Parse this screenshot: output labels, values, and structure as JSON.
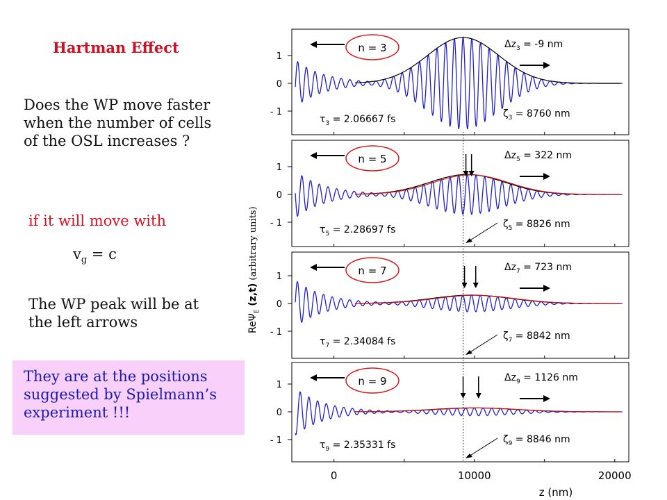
{
  "left_panel": {
    "title": "Hartman Effect",
    "question": [
      "Does the WP move faster",
      "when the number of cells",
      "of the OSL increases ?"
    ],
    "condition": "if it will move with",
    "velocity": {
      "v": "v",
      "sub": "g",
      "rest": " = c"
    },
    "peak_text": [
      "The WP peak will be at",
      "the left arrows"
    ],
    "note": [
      "They are at the positions",
      "suggested by Spielmann’s",
      "experiment  !!!"
    ]
  },
  "chart_data": {
    "type": "line",
    "title": "",
    "xlabel": "z  (nm)",
    "ylabel": {
      "pre": "Re",
      "psi": "Ψ",
      "sub": "E",
      "post": " (z,t)",
      "units": "(arbitrary units)"
    },
    "xlim": [
      -3000,
      21000
    ],
    "x_ticks": [
      "0",
      "10000",
      "20000"
    ],
    "y_ticks": [
      "1",
      "0",
      "- 1"
    ],
    "reference_z": 9200,
    "colors": {
      "wave": "#1f1fd0",
      "envelope_black": "#000000",
      "envelope_red": "#e01010",
      "circle": "#d81a1a"
    },
    "panels": [
      {
        "n_label": "n  =  3",
        "tau_label": "τ",
        "tau_sub": "3",
        "tau_value": " =  2.06667  fs",
        "dz_label": "Δz",
        "dz_sub": "3",
        "dz_value": " =  -9  nm",
        "zeta_label": "ζ",
        "zeta_sub": "3",
        "zeta_value": " =  8760  nm",
        "peak_z": 9200,
        "peak_amp": 1.65,
        "env_sigma": 3600,
        "peak_arrows_z": []
      },
      {
        "n_label": "n  =  5",
        "tau_label": "τ",
        "tau_sub": "5",
        "tau_value": " =  2.28697  fs",
        "dz_label": "Δz",
        "dz_sub": "5",
        "dz_value": " =  322  nm",
        "zeta_label": "ζ",
        "zeta_sub": "5",
        "zeta_value": " =  8826  nm",
        "peak_z": 9500,
        "peak_amp": 0.72,
        "env_sigma": 3800,
        "peak_arrows_z": [
          9400,
          9800
        ]
      },
      {
        "n_label": "n  =  7",
        "tau_label": "τ",
        "tau_sub": "7",
        "tau_value": " =  2.34084  fs",
        "dz_label": "Δz",
        "dz_sub": "7",
        "dz_value": " =  723  nm",
        "zeta_label": "ζ",
        "zeta_sub": "7",
        "zeta_value": " =  8842  nm",
        "peak_z": 9800,
        "peak_amp": 0.3,
        "env_sigma": 4000,
        "peak_arrows_z": [
          9300,
          10100
        ]
      },
      {
        "n_label": "n  =  9",
        "tau_label": "τ",
        "tau_sub": "9",
        "tau_value": " =  2.35331  fs",
        "dz_label": "Δz",
        "dz_sub": "9",
        "dz_value": " =  1126  nm",
        "zeta_label": "ζ",
        "zeta_sub": "9",
        "zeta_value": " =  8846  nm",
        "peak_z": 10000,
        "peak_amp": 0.14,
        "env_sigma": 4200,
        "peak_arrows_z": [
          9200,
          10300
        ]
      }
    ]
  }
}
